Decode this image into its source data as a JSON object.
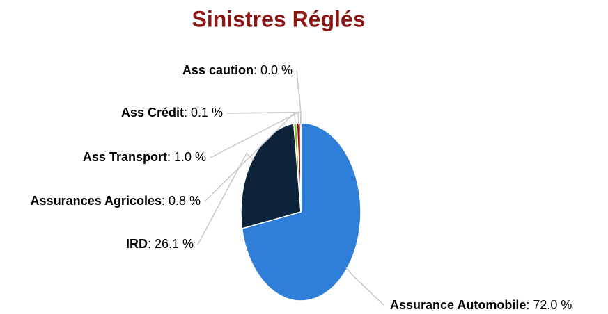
{
  "chart_data": {
    "type": "pie",
    "title": "Sinistres Réglés",
    "categories": [
      "Assurance Automobile",
      "IRD",
      "Assurances Agricoles",
      "Ass Transport",
      "Ass Crédit",
      "Ass caution"
    ],
    "values": [
      72.0,
      26.1,
      0.8,
      1.0,
      0.1,
      0.0
    ],
    "value_labels": [
      ": 72.0 %",
      ": 26.1 %",
      ": 0.8 %",
      ": 1.0 %",
      ": 0.1 %",
      ": 0.0 %"
    ],
    "colors": [
      "#2f7ed8",
      "#0d233a",
      "#8bbc21",
      "#910000",
      "#1aadce",
      "#492970"
    ]
  }
}
